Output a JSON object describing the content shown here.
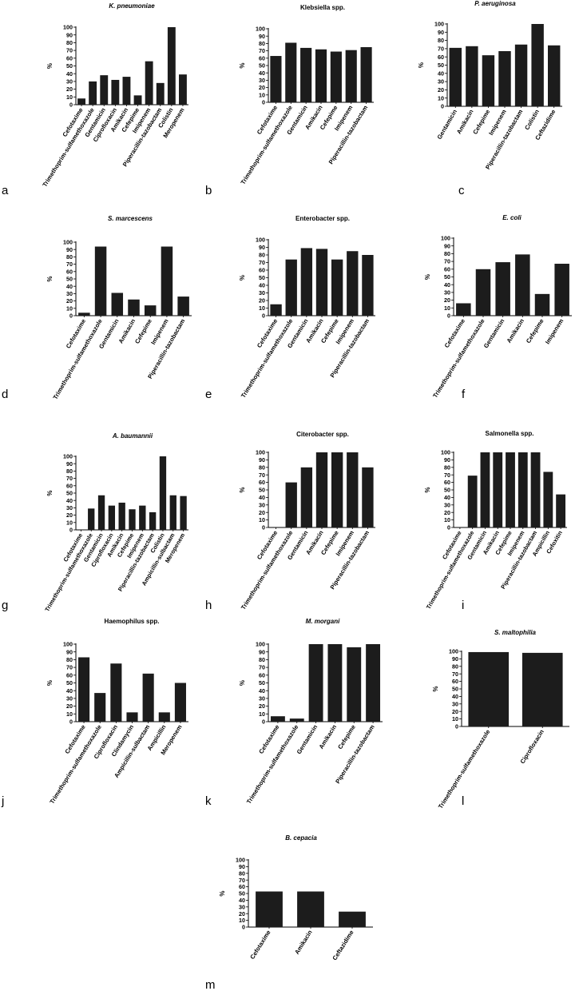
{
  "chart_data": [
    {
      "letter": "a",
      "title": "K. pneumoniae",
      "title_italic": true,
      "ylabel": "%",
      "type": "bar",
      "ylim": [
        0,
        100
      ],
      "yticks": [
        0,
        10,
        20,
        30,
        40,
        50,
        60,
        70,
        80,
        90,
        100
      ],
      "categories": [
        "Cefotaxime",
        "Trimethoprim-sulfamethoxazole",
        "Gentamicin",
        "Ciprofloxacin",
        "Amikacin",
        "Cefepime",
        "Imipenem",
        "Piperacillin-tazobactam",
        "Colistin",
        "Meropenem"
      ],
      "values": [
        8,
        30,
        38,
        32,
        36,
        12,
        56,
        28,
        100,
        39
      ]
    },
    {
      "letter": "b",
      "title": "Klebsiella spp.",
      "title_italic": false,
      "ylabel": "%",
      "type": "bar",
      "ylim": [
        0,
        100
      ],
      "yticks": [
        0,
        10,
        20,
        30,
        40,
        50,
        60,
        70,
        80,
        90,
        100
      ],
      "categories": [
        "Cefotaxime",
        "Trimethoprim-sulfamethoxazole",
        "Gentamicin",
        "Amikacin",
        "Cefepime",
        "Imipenem",
        "Piperacillin-tazobactam"
      ],
      "values": [
        63,
        81,
        74,
        72,
        69,
        71,
        75
      ]
    },
    {
      "letter": "c",
      "title": "P. aeruginosa",
      "title_italic": true,
      "ylabel": "%",
      "type": "bar",
      "ylim": [
        0,
        100
      ],
      "yticks": [
        0,
        10,
        20,
        30,
        40,
        50,
        60,
        70,
        80,
        90,
        100
      ],
      "categories": [
        "Gentamicin",
        "Amikacin",
        "Cefepime",
        "Imipenem",
        "Piperacillin-tazobactam",
        "Colistin",
        "Ceftazidime"
      ],
      "values": [
        71,
        73,
        62,
        67,
        75,
        100,
        74
      ]
    },
    {
      "letter": "d",
      "title": "S. marcescens",
      "title_italic": true,
      "ylabel": "%",
      "type": "bar",
      "ylim": [
        0,
        100
      ],
      "yticks": [
        0,
        10,
        20,
        30,
        40,
        50,
        60,
        70,
        80,
        90,
        100
      ],
      "categories": [
        "Cefotaxime",
        "Trimethoprim-sulfamethoxazole",
        "Gentamicin",
        "Amikacin",
        "Cefepime",
        "Imipenem",
        "Piperacillin-tazobactam"
      ],
      "values": [
        4,
        94,
        31,
        22,
        14,
        94,
        26
      ]
    },
    {
      "letter": "e",
      "title": "Enterobacter spp.",
      "title_italic": false,
      "ylabel": "%",
      "type": "bar",
      "ylim": [
        0,
        100
      ],
      "yticks": [
        0,
        10,
        20,
        30,
        40,
        50,
        60,
        70,
        80,
        90,
        100
      ],
      "categories": [
        "Cefotaxime",
        "Trimethoprim-sulfamethoxazole",
        "Gentamicin",
        "Amikacin",
        "Cefepime",
        "Imipenem",
        "Piperacillin-tazobactam"
      ],
      "values": [
        15,
        74,
        89,
        88,
        74,
        85,
        80
      ]
    },
    {
      "letter": "f",
      "title": "E. coli",
      "title_italic": true,
      "ylabel": "%",
      "type": "bar",
      "ylim": [
        0,
        100
      ],
      "yticks": [
        0,
        10,
        20,
        30,
        40,
        50,
        60,
        70,
        80,
        90,
        100
      ],
      "categories": [
        "Cefotaxime",
        "Trimethoprim-sulfamethoxazole",
        "Gentamicin",
        "Amikacin",
        "Cefepime",
        "Imipenem"
      ],
      "values": [
        16,
        60,
        69,
        79,
        28,
        67
      ]
    },
    {
      "letter": "g",
      "title": "A. baumannii",
      "title_italic": true,
      "ylabel": "%",
      "type": "bar",
      "ylim": [
        0,
        100
      ],
      "yticks": [
        0,
        10,
        20,
        30,
        40,
        50,
        60,
        70,
        80,
        90,
        100
      ],
      "categories": [
        "Cefotaxime",
        "Trimethoprim-sulfamethoxazole",
        "Gentamicin",
        "Ciprofloxacin",
        "Amikacin",
        "Cefepime",
        "Imipenem",
        "Piperacillin-tazobactam",
        "Colistin",
        "Ampicillin-sulbactam",
        "Meropenem"
      ],
      "values": [
        0,
        29,
        47,
        33,
        37,
        28,
        33,
        24,
        100,
        47,
        46
      ]
    },
    {
      "letter": "h",
      "title": "Citerobacter spp.",
      "title_italic": false,
      "ylabel": "%",
      "type": "bar",
      "ylim": [
        0,
        100
      ],
      "yticks": [
        0,
        10,
        20,
        30,
        40,
        50,
        60,
        70,
        80,
        90,
        100
      ],
      "categories": [
        "Cefotaxime",
        "Trimethoprim-sulfamethoxazole",
        "Gentamicin",
        "Amikacin",
        "Cefepime",
        "Imipenem",
        "Piperacillin-tazobactam"
      ],
      "values": [
        0,
        60,
        80,
        100,
        100,
        100,
        80
      ]
    },
    {
      "letter": "i",
      "title": "Salmonella spp.",
      "title_italic": false,
      "ylabel": "%",
      "type": "bar",
      "ylim": [
        0,
        100
      ],
      "yticks": [
        0,
        10,
        20,
        30,
        40,
        50,
        60,
        70,
        80,
        90,
        100
      ],
      "categories": [
        "Cefotaxime",
        "Trimethoprim-sulfamethoxazole",
        "Gentamicin",
        "Amikacin",
        "Cefepime",
        "Imipenem",
        "Piperacillin-tazobactam",
        "Ampicillin",
        "Cefoxitin"
      ],
      "values": [
        0,
        69,
        100,
        100,
        100,
        100,
        100,
        74,
        44
      ]
    },
    {
      "letter": "j",
      "title": "Haemophilus spp.",
      "title_italic": false,
      "ylabel": "%",
      "type": "bar",
      "ylim": [
        0,
        100
      ],
      "yticks": [
        0,
        10,
        20,
        30,
        40,
        50,
        60,
        70,
        80,
        90,
        100
      ],
      "categories": [
        "Cefotaxime",
        "Trimethoprim-sulfamethoxazole",
        "Ciprofloxacin",
        "Clindamycin",
        "Ampicillin-sulbactam",
        "Ampicillin",
        "Meropenem"
      ],
      "values": [
        83,
        37,
        75,
        12,
        62,
        12,
        50
      ]
    },
    {
      "letter": "k",
      "title": "M. morgani",
      "title_italic": true,
      "ylabel": "%",
      "type": "bar",
      "ylim": [
        0,
        100
      ],
      "yticks": [
        0,
        10,
        20,
        30,
        40,
        50,
        60,
        70,
        80,
        90,
        100
      ],
      "categories": [
        "Cefotaxime",
        "Trimethoprim-sulfamethoxazole",
        "Gentamicin",
        "Amikacin",
        "Cefepime",
        "Piperacillin-tazobactam"
      ],
      "values": [
        7,
        4,
        100,
        100,
        96,
        100
      ]
    },
    {
      "letter": "l",
      "title": "S. maltophilia",
      "title_italic": true,
      "ylabel": "%",
      "type": "bar",
      "ylim": [
        0,
        100
      ],
      "yticks": [
        0,
        10,
        20,
        30,
        40,
        50,
        60,
        70,
        80,
        90,
        100
      ],
      "categories": [
        "Trimethoprim-sulfamethoxazole",
        "Ciprofloxacin"
      ],
      "values": [
        99,
        98
      ]
    },
    {
      "letter": "m",
      "title": "B. cepacia",
      "title_italic": true,
      "ylabel": "%",
      "type": "bar",
      "ylim": [
        0,
        100
      ],
      "yticks": [
        0,
        10,
        20,
        30,
        40,
        50,
        60,
        70,
        80,
        90,
        100
      ],
      "categories": [
        "Cefotaxime",
        "Amikacin",
        "Ceftazidime"
      ],
      "values": [
        53,
        53,
        23
      ]
    }
  ]
}
